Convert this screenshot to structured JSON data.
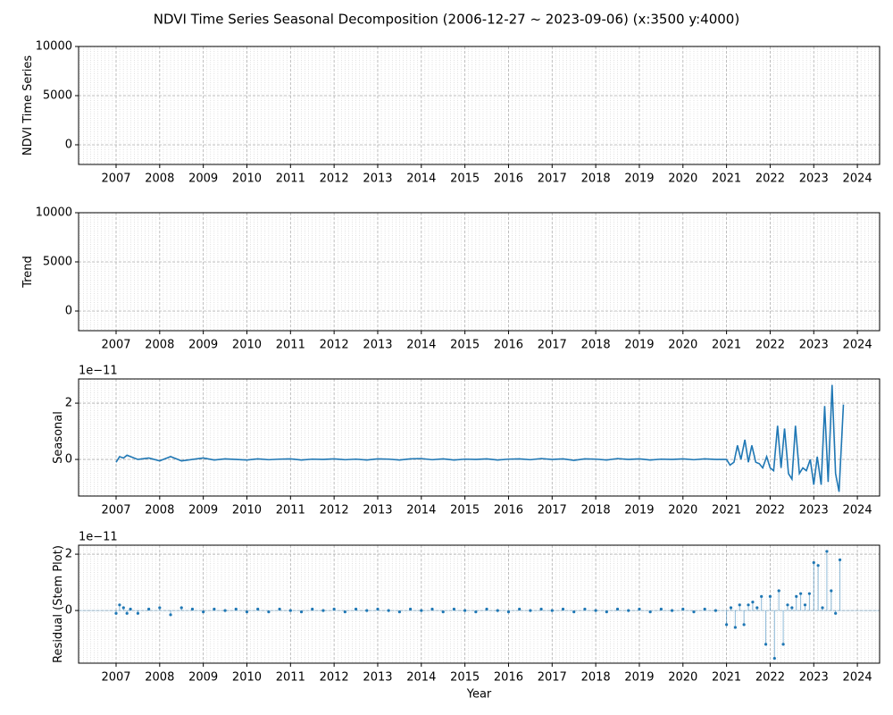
{
  "title": "NDVI Time Series Seasonal Decomposition (2006-12-27 ~ 2023-09-06) (x:3500 y:4000)",
  "chart_data": [
    {
      "type": "line",
      "ylabel": "NDVI Time Series",
      "color": "#1f77b4",
      "grid": true,
      "minor_grid": true,
      "xlim": [
        2006.14,
        2024.51
      ],
      "xticks": [
        2007,
        2008,
        2009,
        2010,
        2011,
        2012,
        2013,
        2014,
        2015,
        2016,
        2017,
        2018,
        2019,
        2020,
        2021,
        2022,
        2023,
        2024
      ],
      "ylim": [
        -2000,
        10000
      ],
      "yticks": [
        0,
        5000,
        10000
      ],
      "x": [],
      "values": []
    },
    {
      "type": "line",
      "ylabel": "Trend",
      "color": "#1f77b4",
      "grid": true,
      "minor_grid": true,
      "xlim": [
        2006.14,
        2024.51
      ],
      "xticks": [
        2007,
        2008,
        2009,
        2010,
        2011,
        2012,
        2013,
        2014,
        2015,
        2016,
        2017,
        2018,
        2019,
        2020,
        2021,
        2022,
        2023,
        2024
      ],
      "ylim": [
        -2000,
        10000
      ],
      "yticks": [
        0,
        5000,
        10000
      ],
      "x": [],
      "values": []
    },
    {
      "type": "line",
      "ylabel": "Seasonal",
      "offset_label": "1e−11",
      "color": "#1f77b4",
      "grid": true,
      "minor_grid": true,
      "xlim": [
        2006.14,
        2024.51
      ],
      "xticks": [
        2007,
        2008,
        2009,
        2010,
        2011,
        2012,
        2013,
        2014,
        2015,
        2016,
        2017,
        2018,
        2019,
        2020,
        2021,
        2022,
        2023,
        2024
      ],
      "ylim": [
        -1.3,
        2.86
      ],
      "yticks": [
        0,
        2
      ],
      "x": [
        2007.0,
        2007.08,
        2007.17,
        2007.25,
        2007.33,
        2007.5,
        2007.75,
        2008.0,
        2008.25,
        2008.5,
        2008.75,
        2009.0,
        2009.25,
        2009.5,
        2009.75,
        2010.0,
        2010.25,
        2010.5,
        2010.75,
        2011.0,
        2011.25,
        2011.5,
        2011.75,
        2012.0,
        2012.25,
        2012.5,
        2012.75,
        2013.0,
        2013.25,
        2013.5,
        2013.75,
        2014.0,
        2014.25,
        2014.5,
        2014.75,
        2015.0,
        2015.25,
        2015.5,
        2015.75,
        2016.0,
        2016.25,
        2016.5,
        2016.75,
        2017.0,
        2017.25,
        2017.5,
        2017.75,
        2018.0,
        2018.25,
        2018.5,
        2018.75,
        2019.0,
        2019.25,
        2019.5,
        2019.75,
        2020.0,
        2020.25,
        2020.5,
        2020.75,
        2021.0,
        2021.08,
        2021.17,
        2021.25,
        2021.33,
        2021.42,
        2021.5,
        2021.58,
        2021.67,
        2021.75,
        2021.83,
        2021.92,
        2022.0,
        2022.08,
        2022.17,
        2022.25,
        2022.33,
        2022.42,
        2022.5,
        2022.58,
        2022.67,
        2022.75,
        2022.83,
        2022.92,
        2023.0,
        2023.08,
        2023.17,
        2023.25,
        2023.33,
        2023.42,
        2023.5,
        2023.58,
        2023.68
      ],
      "values": [
        -0.1,
        0.1,
        0.05,
        0.15,
        0.1,
        0.0,
        0.05,
        -0.05,
        0.1,
        -0.05,
        0.0,
        0.05,
        -0.02,
        0.02,
        0.0,
        -0.02,
        0.02,
        -0.01,
        0.01,
        0.02,
        -0.02,
        0.01,
        0.0,
        0.02,
        -0.01,
        0.01,
        -0.02,
        0.02,
        0.01,
        -0.02,
        0.02,
        0.03,
        -0.01,
        0.02,
        -0.02,
        0.01,
        0.0,
        0.02,
        -0.02,
        0.01,
        0.02,
        -0.01,
        0.03,
        0.0,
        0.02,
        -0.03,
        0.02,
        0.01,
        -0.02,
        0.03,
        0.0,
        0.02,
        -0.02,
        0.01,
        0.0,
        0.02,
        -0.01,
        0.02,
        0.0,
        0.0,
        -0.2,
        -0.1,
        0.5,
        0.0,
        0.7,
        -0.1,
        0.5,
        -0.1,
        -0.15,
        -0.3,
        0.1,
        -0.3,
        -0.4,
        1.2,
        -0.3,
        1.1,
        -0.5,
        -0.7,
        1.2,
        -0.5,
        -0.3,
        -0.4,
        0.0,
        -0.9,
        0.1,
        -0.9,
        1.9,
        -0.8,
        2.65,
        -0.5,
        -1.15,
        1.95
      ]
    },
    {
      "type": "stem",
      "ylabel": "Residual (Stem Plot)",
      "xlabel": "Year",
      "offset_label": "1e−11",
      "color": "#1f77b4",
      "grid": true,
      "minor_grid": true,
      "xlim": [
        2006.14,
        2024.51
      ],
      "xticks": [
        2007,
        2008,
        2009,
        2010,
        2011,
        2012,
        2013,
        2014,
        2015,
        2016,
        2017,
        2018,
        2019,
        2020,
        2021,
        2022,
        2023,
        2024
      ],
      "ylim": [
        -1.87,
        2.32
      ],
      "yticks": [
        0,
        2
      ],
      "x": [
        2007.0,
        2007.08,
        2007.17,
        2007.25,
        2007.33,
        2007.5,
        2007.75,
        2008.0,
        2008.25,
        2008.5,
        2008.75,
        2009.0,
        2009.25,
        2009.5,
        2009.75,
        2010.0,
        2010.25,
        2010.5,
        2010.75,
        2011.0,
        2011.25,
        2011.5,
        2011.75,
        2012.0,
        2012.25,
        2012.5,
        2012.75,
        2013.0,
        2013.25,
        2013.5,
        2013.75,
        2014.0,
        2014.25,
        2014.5,
        2014.75,
        2015.0,
        2015.25,
        2015.5,
        2015.75,
        2016.0,
        2016.25,
        2016.5,
        2016.75,
        2017.0,
        2017.25,
        2017.5,
        2017.75,
        2018.0,
        2018.25,
        2018.5,
        2018.75,
        2019.0,
        2019.25,
        2019.5,
        2019.75,
        2020.0,
        2020.25,
        2020.5,
        2020.75,
        2021.0,
        2021.1,
        2021.2,
        2021.3,
        2021.4,
        2021.5,
        2021.6,
        2021.7,
        2021.8,
        2021.9,
        2022.0,
        2022.1,
        2022.2,
        2022.3,
        2022.4,
        2022.5,
        2022.6,
        2022.7,
        2022.8,
        2022.9,
        2023.0,
        2023.1,
        2023.2,
        2023.3,
        2023.4,
        2023.5,
        2023.6
      ],
      "values": [
        -0.1,
        0.2,
        0.1,
        -0.1,
        0.05,
        -0.1,
        0.05,
        0.1,
        -0.15,
        0.1,
        0.05,
        -0.05,
        0.05,
        0.0,
        0.05,
        -0.05,
        0.05,
        -0.05,
        0.05,
        0.0,
        -0.05,
        0.05,
        0.0,
        0.05,
        -0.05,
        0.05,
        0.0,
        0.05,
        0.0,
        -0.05,
        0.05,
        0.0,
        0.05,
        -0.05,
        0.05,
        0.0,
        -0.05,
        0.05,
        0.0,
        -0.05,
        0.05,
        0.0,
        0.05,
        0.0,
        0.05,
        -0.05,
        0.05,
        0.0,
        -0.05,
        0.05,
        0.0,
        0.05,
        -0.05,
        0.05,
        0.0,
        0.05,
        -0.05,
        0.05,
        0.0,
        -0.5,
        0.1,
        -0.6,
        0.2,
        -0.5,
        0.2,
        0.3,
        0.1,
        0.5,
        -1.2,
        0.5,
        -1.7,
        0.7,
        -1.2,
        0.2,
        0.1,
        0.5,
        0.6,
        0.2,
        0.6,
        1.7,
        1.6,
        0.1,
        2.1,
        0.7,
        -0.1,
        1.8
      ]
    }
  ]
}
